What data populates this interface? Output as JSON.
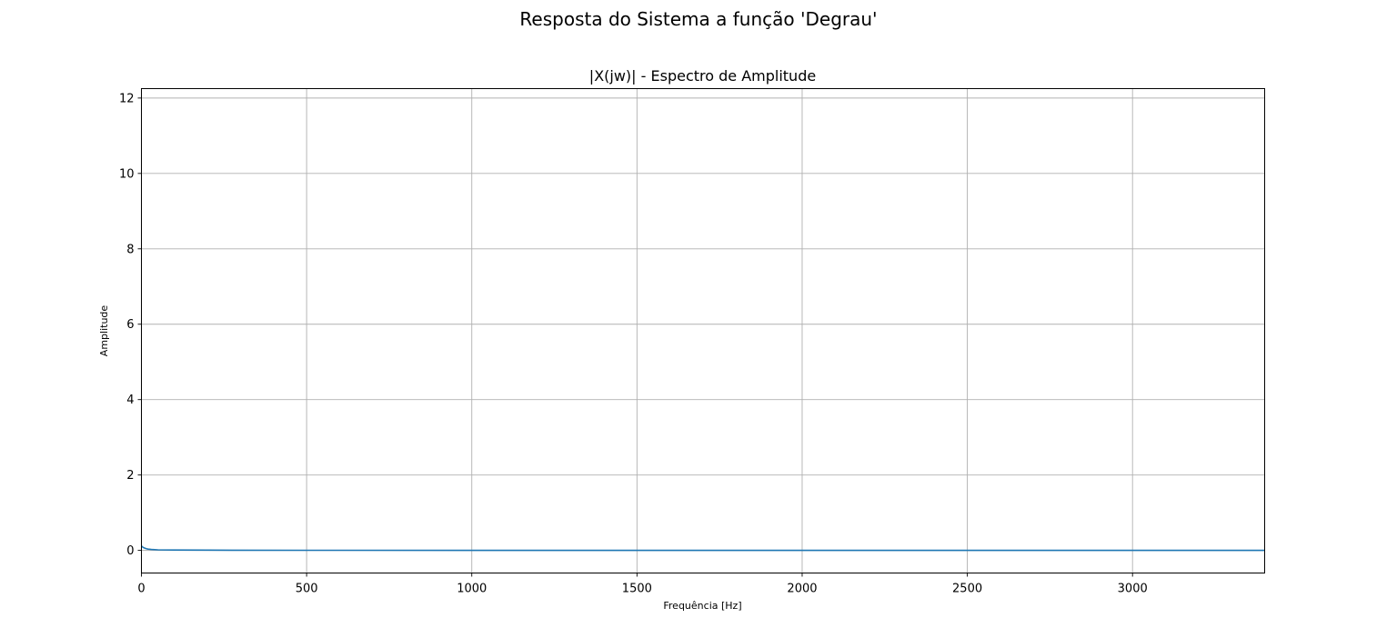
{
  "figure": {
    "suptitle": "Resposta do Sistema a função 'Degrau'"
  },
  "chart_data": {
    "type": "line",
    "title": "|X(jw)| - Espectro de Amplitude",
    "xlabel": "Frequência [Hz]",
    "ylabel": "Amplitude",
    "xlim": [
      0,
      3400
    ],
    "ylim": [
      -0.6,
      12.25
    ],
    "xticks": [
      0,
      500,
      1000,
      1500,
      2000,
      2500,
      3000
    ],
    "yticks": [
      0,
      2,
      4,
      6,
      8,
      10,
      12
    ],
    "grid": true,
    "series": [
      {
        "color": "#1f77b4",
        "x": [
          0,
          2,
          5,
          10,
          15,
          20,
          30,
          50,
          100,
          200,
          500,
          1000,
          1500,
          2000,
          2500,
          3000,
          3400
        ],
        "y": [
          0.12,
          0.1,
          0.08,
          0.06,
          0.045,
          0.035,
          0.025,
          0.015,
          0.01,
          0.006,
          0.003,
          0.002,
          0.002,
          0.002,
          0.002,
          0.002,
          0.002
        ]
      }
    ]
  }
}
